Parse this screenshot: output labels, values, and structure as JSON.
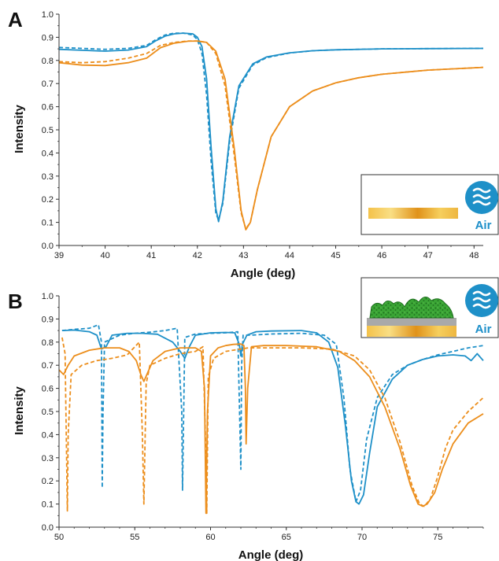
{
  "colors": {
    "blue": "#1e90c8",
    "orange": "#ec8e1c",
    "axis": "#333333",
    "air_circle": "#1e90c8",
    "gold_light": "#f6d060",
    "gold_dark": "#e0921a",
    "cell_green": "#3aa535",
    "cell_dark": "#1f6f1f",
    "metal_gray": "#a9a9a9"
  },
  "chart_data": [
    {
      "panel": "A",
      "type": "line",
      "xlabel": "Angle (deg)",
      "ylabel": "Intensity",
      "xlim": [
        39,
        48.2
      ],
      "ylim": [
        0,
        1.0
      ],
      "xticks": [
        39,
        40,
        41,
        42,
        43,
        44,
        45,
        46,
        47,
        48
      ],
      "xtick_labels": [
        "39",
        "40",
        "41",
        "42",
        "43",
        "44",
        "45",
        "46",
        "47",
        "48"
      ],
      "yticks": [
        0,
        0.1,
        0.2,
        0.3,
        0.4,
        0.5,
        0.6,
        0.7,
        0.8,
        0.9,
        1.0
      ],
      "ytick_labels": [
        "0.0",
        "0.1",
        "0.2",
        "0.3",
        "0.4",
        "0.5",
        "0.6",
        "0.7",
        "0.8",
        "0.9",
        "1.0"
      ],
      "inset_label": "Air",
      "inset_icon": "air-waves-icon",
      "series": [
        {
          "color_key": "blue",
          "style": "dashed",
          "x": [
            39.0,
            39.5,
            40.0,
            40.5,
            40.9,
            41.1,
            41.3,
            41.5,
            41.7,
            41.9,
            42.0,
            42.1,
            42.2,
            42.3,
            42.4,
            42.46,
            42.55,
            42.7,
            42.9,
            43.2,
            43.5,
            44.0,
            44.5,
            45.0,
            46.0,
            47.0,
            48.2
          ],
          "y": [
            0.856,
            0.852,
            0.848,
            0.852,
            0.865,
            0.89,
            0.91,
            0.918,
            0.918,
            0.91,
            0.89,
            0.83,
            0.65,
            0.36,
            0.14,
            0.11,
            0.18,
            0.45,
            0.68,
            0.78,
            0.812,
            0.832,
            0.842,
            0.846,
            0.85,
            0.851,
            0.852
          ]
        },
        {
          "color_key": "blue",
          "style": "solid",
          "x": [
            39.0,
            39.5,
            40.0,
            40.5,
            40.9,
            41.1,
            41.3,
            41.5,
            41.7,
            41.9,
            42.0,
            42.1,
            42.2,
            42.3,
            42.4,
            42.46,
            42.55,
            42.7,
            42.9,
            43.2,
            43.5,
            44.0,
            44.5,
            45.0,
            46.0,
            47.0,
            48.2
          ],
          "y": [
            0.848,
            0.844,
            0.84,
            0.845,
            0.86,
            0.885,
            0.905,
            0.915,
            0.918,
            0.915,
            0.9,
            0.86,
            0.72,
            0.42,
            0.16,
            0.103,
            0.19,
            0.47,
            0.69,
            0.785,
            0.815,
            0.833,
            0.842,
            0.846,
            0.85,
            0.851,
            0.852
          ]
        },
        {
          "color_key": "orange",
          "style": "dashed",
          "x": [
            39.0,
            39.5,
            40.0,
            40.5,
            40.9,
            41.2,
            41.5,
            41.8,
            42.0,
            42.2,
            42.4,
            42.6,
            42.8,
            42.95,
            43.05,
            43.15,
            43.3,
            43.6,
            44.0,
            44.5,
            45.0,
            45.5,
            46.0,
            47.0,
            48.2
          ],
          "y": [
            0.795,
            0.79,
            0.795,
            0.81,
            0.83,
            0.865,
            0.878,
            0.884,
            0.884,
            0.878,
            0.83,
            0.69,
            0.39,
            0.14,
            0.072,
            0.1,
            0.24,
            0.47,
            0.6,
            0.668,
            0.703,
            0.725,
            0.74,
            0.758,
            0.77
          ]
        },
        {
          "color_key": "orange",
          "style": "solid",
          "x": [
            39.0,
            39.5,
            40.0,
            40.5,
            40.9,
            41.2,
            41.5,
            41.8,
            42.0,
            42.2,
            42.4,
            42.6,
            42.8,
            42.95,
            43.05,
            43.15,
            43.3,
            43.6,
            44.0,
            44.5,
            45.0,
            45.5,
            46.0,
            47.0,
            48.2
          ],
          "y": [
            0.79,
            0.78,
            0.778,
            0.79,
            0.81,
            0.855,
            0.875,
            0.883,
            0.884,
            0.878,
            0.84,
            0.72,
            0.42,
            0.15,
            0.068,
            0.1,
            0.24,
            0.47,
            0.6,
            0.668,
            0.703,
            0.725,
            0.74,
            0.758,
            0.77
          ]
        }
      ]
    },
    {
      "panel": "B",
      "type": "line",
      "xlabel": "Angle (deg)",
      "ylabel": "Intensity",
      "xlim": [
        50,
        78
      ],
      "ylim": [
        0,
        1.0
      ],
      "xticks": [
        50,
        55,
        60,
        65,
        70,
        75
      ],
      "xtick_labels": [
        "50",
        "55",
        "60",
        "65",
        "70",
        "75"
      ],
      "yticks": [
        0,
        0.1,
        0.2,
        0.3,
        0.4,
        0.5,
        0.6,
        0.7,
        0.8,
        0.9,
        1.0
      ],
      "ytick_labels": [
        "0.0",
        "0.1",
        "0.2",
        "0.3",
        "0.4",
        "0.5",
        "0.6",
        "0.7",
        "0.8",
        "0.9",
        "1.0"
      ],
      "inset_label": "Air",
      "inset_icon": "air-waves-icon",
      "series": [
        {
          "color_key": "blue",
          "style": "dashed",
          "x": [
            50.2,
            51.0,
            52.0,
            52.6,
            52.8,
            52.85,
            52.9,
            53.0,
            54.0,
            55.0,
            56.0,
            57.0,
            57.8,
            58.1,
            58.15,
            58.3,
            59.0,
            60.0,
            61.0,
            61.8,
            62.0,
            62.05,
            62.15,
            62.6,
            64.0,
            66.0,
            67.5,
            68.3,
            68.8,
            69.2,
            69.6,
            69.9,
            70.3,
            71.0,
            72.0,
            73.0,
            74.0,
            75.0,
            76.0,
            77.0,
            78.0
          ],
          "y": [
            0.85,
            0.855,
            0.86,
            0.875,
            0.8,
            0.17,
            0.48,
            0.8,
            0.83,
            0.838,
            0.843,
            0.85,
            0.86,
            0.5,
            0.16,
            0.82,
            0.835,
            0.838,
            0.84,
            0.845,
            0.25,
            0.7,
            0.83,
            0.83,
            0.835,
            0.838,
            0.83,
            0.79,
            0.56,
            0.25,
            0.11,
            0.16,
            0.38,
            0.56,
            0.66,
            0.7,
            0.725,
            0.745,
            0.76,
            0.775,
            0.785
          ]
        },
        {
          "color_key": "blue",
          "style": "solid",
          "x": [
            50.2,
            51.0,
            52.0,
            52.5,
            52.8,
            53.1,
            53.5,
            54.5,
            55.5,
            56.5,
            57.5,
            58.0,
            58.3,
            58.6,
            59.0,
            60.0,
            61.0,
            61.6,
            61.9,
            62.0,
            62.1,
            62.4,
            63.0,
            64.0,
            66.0,
            67.0,
            67.8,
            68.4,
            68.9,
            69.3,
            69.6,
            69.8,
            70.1,
            70.5,
            71.0,
            72.0,
            73.0,
            74.0,
            75.0,
            76.0,
            76.8,
            77.2,
            77.6,
            78.0
          ],
          "y": [
            0.85,
            0.852,
            0.845,
            0.83,
            0.77,
            0.78,
            0.83,
            0.838,
            0.838,
            0.834,
            0.8,
            0.76,
            0.73,
            0.78,
            0.83,
            0.84,
            0.842,
            0.84,
            0.79,
            0.74,
            0.79,
            0.83,
            0.845,
            0.848,
            0.85,
            0.84,
            0.8,
            0.69,
            0.44,
            0.2,
            0.11,
            0.1,
            0.14,
            0.32,
            0.52,
            0.64,
            0.7,
            0.725,
            0.74,
            0.745,
            0.74,
            0.72,
            0.75,
            0.72
          ]
        },
        {
          "color_key": "orange",
          "style": "dashed",
          "x": [
            50.2,
            50.4,
            50.5,
            50.55,
            50.6,
            50.8,
            51.5,
            52.5,
            53.5,
            54.5,
            55.3,
            55.5,
            55.6,
            55.75,
            56.0,
            57.0,
            58.0,
            59.0,
            59.5,
            59.7,
            59.75,
            59.85,
            60.2,
            61.0,
            62.0,
            62.5,
            64.0,
            66.0,
            68.0,
            69.5,
            70.5,
            71.5,
            72.5,
            73.3,
            73.8,
            74.1,
            74.5,
            75.0,
            75.5,
            76.0,
            77.0,
            78.0
          ],
          "y": [
            0.82,
            0.75,
            0.3,
            0.07,
            0.4,
            0.66,
            0.7,
            0.72,
            0.73,
            0.745,
            0.8,
            0.4,
            0.1,
            0.62,
            0.7,
            0.73,
            0.75,
            0.76,
            0.78,
            0.3,
            0.06,
            0.65,
            0.73,
            0.76,
            0.77,
            0.775,
            0.775,
            0.775,
            0.77,
            0.74,
            0.68,
            0.56,
            0.37,
            0.18,
            0.1,
            0.09,
            0.12,
            0.22,
            0.34,
            0.42,
            0.5,
            0.56
          ]
        },
        {
          "color_key": "orange",
          "style": "solid",
          "x": [
            50.0,
            50.3,
            50.6,
            51.0,
            52.0,
            53.0,
            54.0,
            54.6,
            55.1,
            55.4,
            55.6,
            55.8,
            56.2,
            57.0,
            58.0,
            59.0,
            59.4,
            59.6,
            59.7,
            59.8,
            60.0,
            60.5,
            61.0,
            61.5,
            62.0,
            62.2,
            62.3,
            62.35,
            62.45,
            62.7,
            63.5,
            65.0,
            67.0,
            68.5,
            69.5,
            70.5,
            71.5,
            72.5,
            73.2,
            73.7,
            74.0,
            74.3,
            74.8,
            75.3,
            76.0,
            77.0,
            78.0
          ],
          "y": [
            0.68,
            0.66,
            0.7,
            0.74,
            0.765,
            0.775,
            0.775,
            0.76,
            0.72,
            0.66,
            0.63,
            0.66,
            0.72,
            0.76,
            0.775,
            0.775,
            0.76,
            0.6,
            0.06,
            0.5,
            0.74,
            0.775,
            0.785,
            0.79,
            0.792,
            0.785,
            0.6,
            0.36,
            0.6,
            0.78,
            0.785,
            0.785,
            0.78,
            0.76,
            0.72,
            0.65,
            0.52,
            0.34,
            0.18,
            0.1,
            0.09,
            0.1,
            0.15,
            0.25,
            0.36,
            0.45,
            0.49
          ]
        }
      ]
    }
  ],
  "panels": [
    {
      "letter": "A"
    },
    {
      "letter": "B"
    }
  ]
}
